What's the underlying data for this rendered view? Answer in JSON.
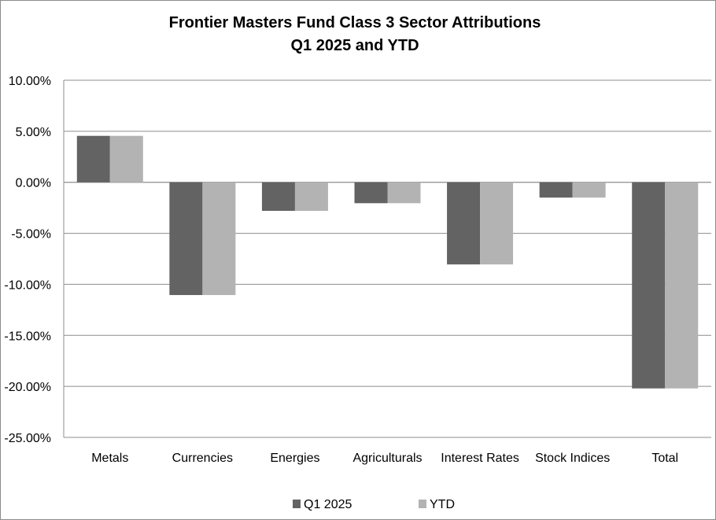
{
  "chart_data": {
    "type": "bar",
    "title": [
      "Frontier Masters Fund Class 3 Sector Attributions",
      "Q1 2025 and YTD"
    ],
    "categories": [
      "Metals",
      "Currencies",
      "Energies",
      "Agriculturals",
      "Interest Rates",
      "Stock Indices",
      "Total"
    ],
    "series": [
      {
        "name": "Q1 2025",
        "color": "#636363",
        "values": [
          4.55,
          -11.05,
          -2.8,
          -2.05,
          -8.05,
          -1.5,
          -20.2
        ]
      },
      {
        "name": "YTD",
        "color": "#b3b3b3",
        "values": [
          4.55,
          -11.05,
          -2.8,
          -2.05,
          -8.05,
          -1.5,
          -20.2
        ]
      }
    ],
    "ylim": [
      -25,
      10
    ],
    "ytick_values": [
      10,
      5,
      0,
      -5,
      -10,
      -15,
      -20,
      -25
    ],
    "ytick_labels": [
      "10.00%",
      "5.00%",
      "0.00%",
      "-5.00%",
      "-10.00%",
      "-15.00%",
      "-20.00%",
      "-25.00%"
    ],
    "xlabel": "",
    "ylabel": "",
    "grid": true,
    "legend_position": "bottom"
  }
}
